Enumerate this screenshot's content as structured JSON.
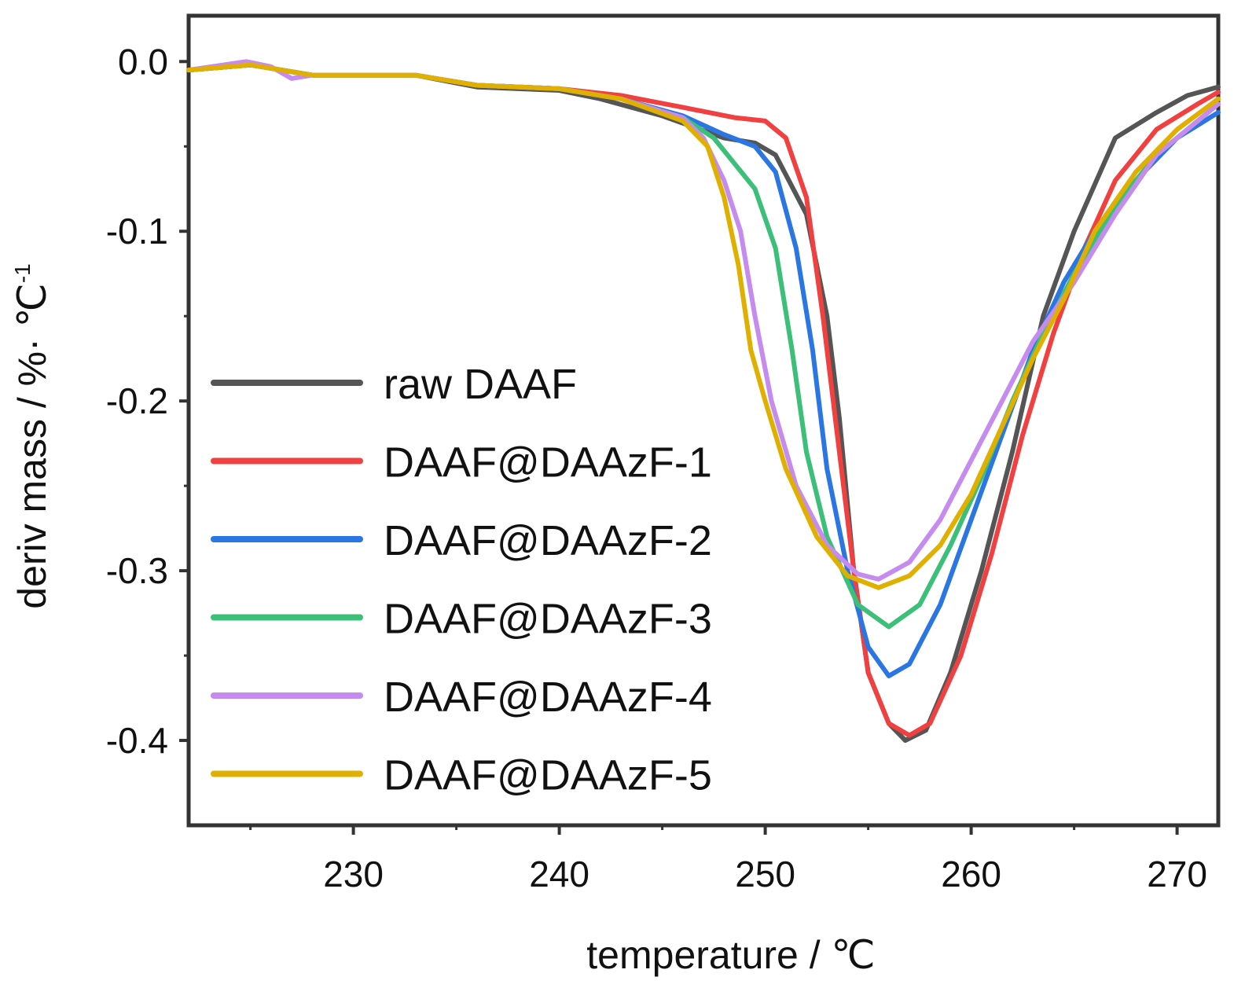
{
  "chart_data": {
    "type": "line",
    "title": "",
    "xlabel": "temperature / ℃",
    "ylabel": "deriv mass / %· ℃",
    "ylabel_superscript": "-1",
    "xlim": [
      222,
      272
    ],
    "ylim": [
      -0.45,
      0.027
    ],
    "x_ticks": [
      {
        "value": 230,
        "label": "230"
      },
      {
        "value": 240,
        "label": "240"
      },
      {
        "value": 250,
        "label": "250"
      },
      {
        "value": 260,
        "label": "260"
      },
      {
        "value": 270,
        "label": "270"
      }
    ],
    "y_ticks": [
      {
        "value": 0.0,
        "label": "0.0"
      },
      {
        "value": -0.1,
        "label": "-0.1"
      },
      {
        "value": -0.2,
        "label": "-0.2"
      },
      {
        "value": -0.3,
        "label": "-0.3"
      },
      {
        "value": -0.4,
        "label": "-0.4"
      }
    ],
    "grid": false,
    "legend_position": "left",
    "series": [
      {
        "name": "raw DAAF",
        "color": "#555555",
        "points": [
          [
            222,
            -0.005
          ],
          [
            225,
            -0.002
          ],
          [
            228,
            -0.008
          ],
          [
            233,
            -0.008
          ],
          [
            236,
            -0.015
          ],
          [
            240,
            -0.017
          ],
          [
            242,
            -0.022
          ],
          [
            245,
            -0.032
          ],
          [
            248,
            -0.045
          ],
          [
            249.5,
            -0.048
          ],
          [
            250.5,
            -0.055
          ],
          [
            252,
            -0.09
          ],
          [
            253,
            -0.15
          ],
          [
            253.6,
            -0.21
          ],
          [
            254.3,
            -0.3
          ],
          [
            255,
            -0.36
          ],
          [
            256,
            -0.39
          ],
          [
            256.8,
            -0.4
          ],
          [
            257.8,
            -0.394
          ],
          [
            259,
            -0.36
          ],
          [
            260.5,
            -0.3
          ],
          [
            262,
            -0.23
          ],
          [
            263.5,
            -0.15
          ],
          [
            265,
            -0.1
          ],
          [
            267,
            -0.045
          ],
          [
            269,
            -0.03
          ],
          [
            270.5,
            -0.02
          ],
          [
            272,
            -0.015
          ]
        ]
      },
      {
        "name": "DAAF@DAAzF-1",
        "color": "#f04040",
        "points": [
          [
            222,
            -0.005
          ],
          [
            225,
            -0.002
          ],
          [
            228,
            -0.008
          ],
          [
            233,
            -0.008
          ],
          [
            236,
            -0.014
          ],
          [
            240,
            -0.016
          ],
          [
            243,
            -0.02
          ],
          [
            246,
            -0.027
          ],
          [
            248.5,
            -0.033
          ],
          [
            250,
            -0.035
          ],
          [
            251,
            -0.045
          ],
          [
            252,
            -0.08
          ],
          [
            252.8,
            -0.15
          ],
          [
            253.5,
            -0.22
          ],
          [
            254.3,
            -0.3
          ],
          [
            255,
            -0.36
          ],
          [
            256,
            -0.39
          ],
          [
            257,
            -0.397
          ],
          [
            258,
            -0.39
          ],
          [
            259.5,
            -0.35
          ],
          [
            261,
            -0.29
          ],
          [
            262.5,
            -0.22
          ],
          [
            264,
            -0.16
          ],
          [
            265.5,
            -0.11
          ],
          [
            267,
            -0.07
          ],
          [
            269,
            -0.04
          ],
          [
            271,
            -0.025
          ],
          [
            272,
            -0.018
          ]
        ]
      },
      {
        "name": "DAAF@DAAzF-2",
        "color": "#2a76e2",
        "points": [
          [
            222,
            -0.005
          ],
          [
            225,
            -0.002
          ],
          [
            228,
            -0.008
          ],
          [
            233,
            -0.008
          ],
          [
            236,
            -0.014
          ],
          [
            240,
            -0.016
          ],
          [
            243,
            -0.022
          ],
          [
            246,
            -0.032
          ],
          [
            248,
            -0.043
          ],
          [
            249.5,
            -0.05
          ],
          [
            250.5,
            -0.065
          ],
          [
            251.5,
            -0.11
          ],
          [
            252.3,
            -0.17
          ],
          [
            253,
            -0.24
          ],
          [
            254,
            -0.3
          ],
          [
            255,
            -0.345
          ],
          [
            256,
            -0.362
          ],
          [
            257,
            -0.355
          ],
          [
            258.5,
            -0.32
          ],
          [
            260,
            -0.27
          ],
          [
            261.5,
            -0.22
          ],
          [
            263,
            -0.17
          ],
          [
            264.5,
            -0.13
          ],
          [
            266,
            -0.1
          ],
          [
            268,
            -0.07
          ],
          [
            270,
            -0.045
          ],
          [
            272,
            -0.03
          ]
        ]
      },
      {
        "name": "DAAF@DAAzF-3",
        "color": "#3cbf78",
        "points": [
          [
            222,
            -0.005
          ],
          [
            225,
            -0.002
          ],
          [
            228,
            -0.008
          ],
          [
            233,
            -0.008
          ],
          [
            236,
            -0.014
          ],
          [
            240,
            -0.016
          ],
          [
            243,
            -0.022
          ],
          [
            246,
            -0.033
          ],
          [
            247.5,
            -0.045
          ],
          [
            248.5,
            -0.06
          ],
          [
            249.5,
            -0.075
          ],
          [
            250.5,
            -0.11
          ],
          [
            251.3,
            -0.17
          ],
          [
            252,
            -0.23
          ],
          [
            253,
            -0.28
          ],
          [
            254.5,
            -0.32
          ],
          [
            256,
            -0.333
          ],
          [
            257.5,
            -0.32
          ],
          [
            259,
            -0.285
          ],
          [
            260.5,
            -0.245
          ],
          [
            262,
            -0.2
          ],
          [
            263.5,
            -0.16
          ],
          [
            265,
            -0.125
          ],
          [
            267,
            -0.085
          ],
          [
            269,
            -0.055
          ],
          [
            271,
            -0.035
          ],
          [
            272,
            -0.025
          ]
        ]
      },
      {
        "name": "DAAF@DAAzF-4",
        "color": "#c58bef",
        "points": [
          [
            222,
            -0.005
          ],
          [
            224.8,
            0.0
          ],
          [
            226,
            -0.003
          ],
          [
            227,
            -0.01
          ],
          [
            228,
            -0.008
          ],
          [
            233,
            -0.008
          ],
          [
            236,
            -0.014
          ],
          [
            240,
            -0.016
          ],
          [
            243,
            -0.022
          ],
          [
            246,
            -0.033
          ],
          [
            247,
            -0.045
          ],
          [
            248,
            -0.07
          ],
          [
            248.8,
            -0.1
          ],
          [
            249.5,
            -0.15
          ],
          [
            250.3,
            -0.2
          ],
          [
            251.5,
            -0.25
          ],
          [
            253,
            -0.285
          ],
          [
            254.5,
            -0.302
          ],
          [
            255.5,
            -0.305
          ],
          [
            257,
            -0.295
          ],
          [
            258.5,
            -0.27
          ],
          [
            260,
            -0.235
          ],
          [
            261.5,
            -0.2
          ],
          [
            263,
            -0.165
          ],
          [
            265,
            -0.13
          ],
          [
            267,
            -0.09
          ],
          [
            269,
            -0.055
          ],
          [
            271,
            -0.035
          ],
          [
            272,
            -0.025
          ]
        ]
      },
      {
        "name": "DAAF@DAAzF-5",
        "color": "#e0b000",
        "points": [
          [
            222,
            -0.005
          ],
          [
            225,
            -0.002
          ],
          [
            228,
            -0.008
          ],
          [
            233,
            -0.008
          ],
          [
            236,
            -0.014
          ],
          [
            240,
            -0.016
          ],
          [
            243,
            -0.022
          ],
          [
            246,
            -0.035
          ],
          [
            247.2,
            -0.05
          ],
          [
            248,
            -0.08
          ],
          [
            248.7,
            -0.12
          ],
          [
            249.3,
            -0.17
          ],
          [
            250,
            -0.2
          ],
          [
            251,
            -0.24
          ],
          [
            252.5,
            -0.28
          ],
          [
            254,
            -0.303
          ],
          [
            255.5,
            -0.31
          ],
          [
            257,
            -0.303
          ],
          [
            258.5,
            -0.285
          ],
          [
            260,
            -0.255
          ],
          [
            261.5,
            -0.215
          ],
          [
            263,
            -0.175
          ],
          [
            264.5,
            -0.14
          ],
          [
            266,
            -0.1
          ],
          [
            268,
            -0.065
          ],
          [
            270,
            -0.04
          ],
          [
            272,
            -0.022
          ]
        ]
      }
    ]
  }
}
